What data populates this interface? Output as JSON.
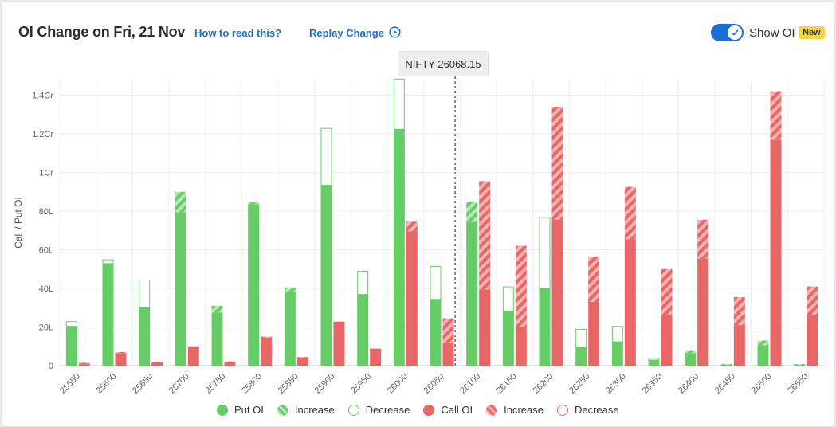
{
  "header": {
    "title": "OI Change on Fri, 21 Nov",
    "how_to_read": "How to read this?",
    "replay": "Replay Change",
    "show_oi_label": "Show OI",
    "new_badge": "New",
    "toggle_on": true
  },
  "tooltip": {
    "text": "NIFTY 26068.15"
  },
  "colors": {
    "put": "#66cc66",
    "call": "#e96666",
    "put_stripe_light": "#b8e8b8",
    "call_stripe_light": "#f4b3b3"
  },
  "legend": [
    {
      "label": "Put OI",
      "kind": "put-solid"
    },
    {
      "label": "Increase",
      "kind": "put-stripe"
    },
    {
      "label": "Decrease",
      "kind": "put-outline"
    },
    {
      "label": "Call OI",
      "kind": "call-solid"
    },
    {
      "label": "Increase",
      "kind": "call-stripe"
    },
    {
      "label": "Decrease",
      "kind": "call-outline"
    }
  ],
  "chart_data": {
    "type": "bar",
    "ylabel": "Call / Put OI",
    "ylim": [
      0,
      14800000
    ],
    "yticks": [
      {
        "value": 0,
        "label": "0"
      },
      {
        "value": 2000000,
        "label": "20L"
      },
      {
        "value": 4000000,
        "label": "40L"
      },
      {
        "value": 6000000,
        "label": "60L"
      },
      {
        "value": 8000000,
        "label": "80L"
      },
      {
        "value": 10000000,
        "label": "1Cr"
      },
      {
        "value": 12000000,
        "label": "1.2Cr"
      },
      {
        "value": 14000000,
        "label": "1.4Cr"
      }
    ],
    "grid": true,
    "spot": {
      "label": "NIFTY",
      "value": 26068.15
    },
    "categories": [
      "25550",
      "25600",
      "25650",
      "25700",
      "25750",
      "25800",
      "25850",
      "25900",
      "25950",
      "26000",
      "26050",
      "26100",
      "26150",
      "26200",
      "26250",
      "26300",
      "26350",
      "26400",
      "26450",
      "26500",
      "26550"
    ],
    "series": [
      {
        "name": "Put OI",
        "current": [
          2050000,
          5300000,
          3050000,
          9000000,
          3100000,
          8450000,
          4050000,
          9350000,
          3700000,
          12250000,
          3450000,
          8500000,
          2850000,
          4000000,
          950000,
          1250000,
          300000,
          800000,
          80000,
          1300000,
          80000
        ],
        "previous": [
          2300000,
          5500000,
          4450000,
          7950000,
          2750000,
          8350000,
          3850000,
          12300000,
          4900000,
          14850000,
          5150000,
          7450000,
          4100000,
          7700000,
          1900000,
          2050000,
          400000,
          650000,
          50000,
          1050000,
          40000
        ]
      },
      {
        "name": "Call OI",
        "current": [
          150000,
          700000,
          200000,
          950000,
          220000,
          1500000,
          450000,
          2250000,
          900000,
          7450000,
          2450000,
          9550000,
          6200000,
          13400000,
          5650000,
          9250000,
          5000000,
          7550000,
          3550000,
          14200000,
          4100000
        ],
        "previous": [
          100000,
          650000,
          170000,
          1000000,
          180000,
          1450000,
          420000,
          2280000,
          880000,
          6950000,
          1200000,
          3950000,
          2000000,
          7550000,
          3300000,
          6550000,
          2600000,
          5550000,
          2100000,
          11700000,
          2600000
        ]
      }
    ]
  }
}
